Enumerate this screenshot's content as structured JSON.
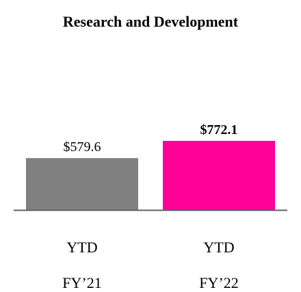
{
  "chart_data": {
    "type": "bar",
    "title": "Research and Development",
    "categories": [
      {
        "line1": "YTD",
        "line2": "FY’21"
      },
      {
        "line1": "YTD",
        "line2": "FY’22"
      }
    ],
    "values": [
      579.6,
      772.1
    ],
    "value_labels": [
      "$579.6",
      "$772.1"
    ],
    "value_label_bold": [
      false,
      true
    ],
    "bar_colors": [
      "#808080",
      "#FF0099"
    ],
    "xlabel": "",
    "ylabel": "",
    "ylim": [
      0,
      772.1
    ],
    "grid": false,
    "axis_color": "#606060"
  }
}
